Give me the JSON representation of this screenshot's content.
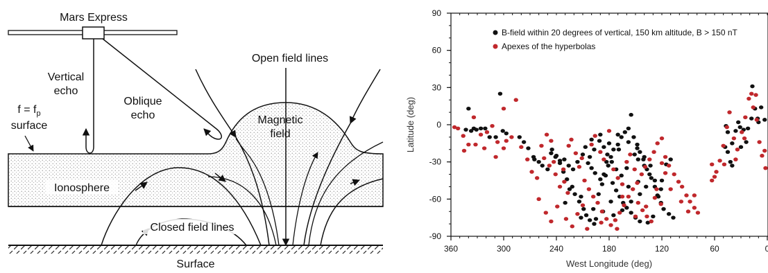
{
  "diagram": {
    "spacecraft_label": "Mars Express",
    "vertical_echo_line1": "Vertical",
    "vertical_echo_line2": "echo",
    "oblique_echo_line1": "Oblique",
    "oblique_echo_line2": "echo",
    "surface_label_line1": "f = f",
    "surface_label_sub": "p",
    "surface_label_line2": "surface",
    "open_field_lines": "Open field lines",
    "magnetic_field_line1": "Magnetic",
    "magnetic_field_line2": "field",
    "ionosphere": "Ionosphere",
    "closed_field_lines": "Closed field lines",
    "ground_label": "Surface"
  },
  "chart_data": {
    "type": "scatter",
    "xlabel": "West Longitude (deg)",
    "ylabel": "Latitude (deg)",
    "xlim": [
      360,
      0
    ],
    "ylim": [
      -90,
      90
    ],
    "x_ticks": [
      "360",
      "300",
      "240",
      "180",
      "120",
      "60",
      "0"
    ],
    "y_ticks": [
      "90",
      "60",
      "30",
      "0",
      "-30",
      "-60",
      "-90"
    ],
    "legend_position": "top-right",
    "series": [
      {
        "name": "B-field within 20 degrees of vertical, 150 km altitude, B > 150 nT",
        "color": "#111111",
        "points": [
          [
            340,
            13
          ],
          [
            343,
            -4
          ],
          [
            337,
            -5
          ],
          [
            334,
            -3
          ],
          [
            331,
            -4
          ],
          [
            326,
            -3
          ],
          [
            321,
            -3
          ],
          [
            316,
            -10
          ],
          [
            309,
            -10
          ],
          [
            304,
            25
          ],
          [
            301,
            -5
          ],
          [
            297,
            -7
          ],
          [
            282,
            -10
          ],
          [
            277,
            -14
          ],
          [
            272,
            -19
          ],
          [
            266,
            -26
          ],
          [
            265,
            -28
          ],
          [
            260,
            -30
          ],
          [
            256,
            -33
          ],
          [
            250,
            -36
          ],
          [
            245,
            -20
          ],
          [
            240,
            -25
          ],
          [
            236,
            -29
          ],
          [
            232,
            -38
          ],
          [
            228,
            -44
          ],
          [
            222,
            -50
          ],
          [
            219,
            -56
          ],
          [
            214,
            -62
          ],
          [
            209,
            -68
          ],
          [
            206,
            -73
          ],
          [
            202,
            -77
          ],
          [
            197,
            -80
          ],
          [
            192,
            -56
          ],
          [
            188,
            -48
          ],
          [
            184,
            -41
          ],
          [
            181,
            -33
          ],
          [
            178,
            -26
          ],
          [
            175,
            -20
          ],
          [
            170,
            -16
          ],
          [
            166,
            -10
          ],
          [
            162,
            -6
          ],
          [
            158,
            -3
          ],
          [
            155,
            8
          ],
          [
            152,
            -10
          ],
          [
            148,
            -16
          ],
          [
            145,
            -22
          ],
          [
            141,
            -28
          ],
          [
            137,
            -36
          ],
          [
            132,
            -43
          ],
          [
            128,
            -50
          ],
          [
            125,
            -57
          ],
          [
            121,
            -63
          ],
          [
            118,
            -68
          ],
          [
            112,
            -72
          ],
          [
            107,
            -75
          ],
          [
            204,
            -31
          ],
          [
            200,
            -35
          ],
          [
            196,
            -39
          ],
          [
            190,
            -44
          ],
          [
            186,
            -40
          ],
          [
            176,
            -47
          ],
          [
            172,
            -53
          ],
          [
            168,
            -58
          ],
          [
            164,
            -63
          ],
          [
            160,
            -67
          ],
          [
            155,
            -71
          ],
          [
            150,
            -75
          ],
          [
            145,
            -78
          ],
          [
            136,
            -79
          ],
          [
            130,
            -74
          ],
          [
            124,
            -58
          ],
          [
            121,
            -52
          ],
          [
            128,
            -45
          ],
          [
            134,
            -40
          ],
          [
            140,
            -33
          ],
          [
            147,
            -28
          ],
          [
            151,
            -24
          ],
          [
            160,
            -35
          ],
          [
            166,
            -41
          ],
          [
            172,
            -36
          ],
          [
            177,
            -30
          ],
          [
            182,
            -24
          ],
          [
            186,
            -18
          ],
          [
            191,
            -13
          ],
          [
            197,
            -20
          ],
          [
            202,
            -26
          ],
          [
            210,
            -24
          ],
          [
            216,
            -30
          ],
          [
            221,
            -36
          ],
          [
            226,
            -33
          ],
          [
            231,
            -28
          ],
          [
            236,
            -31
          ],
          [
            241,
            -26
          ],
          [
            246,
            -23
          ],
          [
            225,
            -52
          ],
          [
            212,
            -58
          ],
          [
            198,
            -68
          ],
          [
            187,
            -70
          ],
          [
            175,
            -73
          ],
          [
            165,
            -69
          ],
          [
            155,
            -62
          ],
          [
            145,
            -56
          ],
          [
            138,
            -50
          ],
          [
            133,
            -33
          ],
          [
            140,
            -26
          ],
          [
            148,
            -19
          ],
          [
            158,
            -14
          ],
          [
            170,
            -8
          ],
          [
            180,
            -15
          ],
          [
            190,
            -8
          ],
          [
            200,
            -12
          ],
          [
            207,
            -18
          ],
          [
            45,
            -22
          ],
          [
            42,
            -30
          ],
          [
            48,
            -18
          ],
          [
            40,
            -15
          ],
          [
            36,
            -5
          ],
          [
            33,
            2
          ],
          [
            27,
            -4
          ],
          [
            22,
            -3
          ],
          [
            18,
            5
          ],
          [
            14,
            13
          ],
          [
            10,
            2
          ],
          [
            7,
            14
          ],
          [
            31,
            -2
          ],
          [
            45,
            -6
          ],
          [
            47,
            -1
          ],
          [
            24,
            -14
          ],
          [
            30,
            -18
          ],
          [
            40,
            -33
          ],
          [
            17,
            31
          ],
          [
            11,
            5
          ],
          [
            3,
            4
          ],
          [
            120,
            -45
          ],
          [
            115,
            -32
          ],
          [
            110,
            -28
          ],
          [
            195,
            -76
          ],
          [
            212,
            -75
          ],
          [
            230,
            -63
          ],
          [
            178,
            -62
          ],
          [
            158,
            -50
          ],
          [
            147,
            -46
          ],
          [
            169,
            -20
          ],
          [
            183,
            -30
          ]
        ]
      },
      {
        "name": "Apexes of the hyperbolas",
        "color": "#c0282c",
        "points": [
          [
            356,
            -2
          ],
          [
            346,
            -9
          ],
          [
            340,
            -16
          ],
          [
            334,
            6
          ],
          [
            326,
            -8
          ],
          [
            319,
            -6
          ],
          [
            313,
            -1
          ],
          [
            307,
            -14
          ],
          [
            300,
            13
          ],
          [
            297,
            -13
          ],
          [
            291,
            -10
          ],
          [
            286,
            20
          ],
          [
            280,
            -18
          ],
          [
            273,
            -28
          ],
          [
            268,
            -38
          ],
          [
            262,
            -43
          ],
          [
            257,
            -17
          ],
          [
            251,
            -8
          ],
          [
            246,
            -13
          ],
          [
            241,
            -40
          ],
          [
            236,
            -50
          ],
          [
            231,
            -46
          ],
          [
            227,
            -55
          ],
          [
            223,
            -12
          ],
          [
            218,
            -23
          ],
          [
            214,
            -34
          ],
          [
            208,
            -45
          ],
          [
            203,
            -52
          ],
          [
            198,
            -58
          ],
          [
            193,
            -63
          ],
          [
            188,
            -70
          ],
          [
            183,
            -76
          ],
          [
            178,
            -81
          ],
          [
            173,
            -77
          ],
          [
            168,
            -71
          ],
          [
            163,
            -65
          ],
          [
            158,
            -58
          ],
          [
            153,
            -52
          ],
          [
            148,
            -47
          ],
          [
            143,
            -40
          ],
          [
            139,
            -34
          ],
          [
            134,
            -28
          ],
          [
            129,
            -22
          ],
          [
            125,
            -15
          ],
          [
            120,
            -11
          ],
          [
            116,
            -26
          ],
          [
            112,
            -33
          ],
          [
            106,
            -40
          ],
          [
            101,
            -46
          ],
          [
            97,
            -50
          ],
          [
            92,
            -57
          ],
          [
            88,
            -62
          ],
          [
            83,
            -67
          ],
          [
            79,
            -71
          ],
          [
            200,
            -16
          ],
          [
            196,
            -9
          ],
          [
            190,
            -22
          ],
          [
            186,
            -28
          ],
          [
            180,
            -5
          ],
          [
            175,
            -36
          ],
          [
            170,
            -43
          ],
          [
            165,
            -48
          ],
          [
            160,
            -30
          ],
          [
            156,
            -24
          ],
          [
            151,
            -36
          ],
          [
            147,
            -63
          ],
          [
            142,
            -69
          ],
          [
            137,
            -74
          ],
          [
            132,
            -78
          ],
          [
            126,
            -52
          ],
          [
            121,
            -64
          ],
          [
            260,
            -60
          ],
          [
            252,
            -71
          ],
          [
            246,
            -78
          ],
          [
            239,
            -66
          ],
          [
            229,
            -76
          ],
          [
            222,
            -82
          ],
          [
            216,
            -72
          ],
          [
            210,
            -65
          ],
          [
            205,
            -84
          ],
          [
            300,
            -19
          ],
          [
            309,
            -26
          ],
          [
            322,
            -19
          ],
          [
            332,
            -16
          ],
          [
            345,
            -21
          ],
          [
            352,
            -3
          ],
          [
            243,
            -30
          ],
          [
            248,
            -33
          ],
          [
            254,
            -27
          ],
          [
            211,
            -27
          ],
          [
            226,
            -17
          ],
          [
            232,
            -36
          ],
          [
            120,
            -31
          ],
          [
            116,
            -39
          ],
          [
            63,
            -45
          ],
          [
            58,
            -38
          ],
          [
            54,
            -29
          ],
          [
            50,
            -17
          ],
          [
            46,
            -2
          ],
          [
            43,
            10
          ],
          [
            38,
            -11
          ],
          [
            34,
            -20
          ],
          [
            29,
            -6
          ],
          [
            25,
            6
          ],
          [
            21,
            21
          ],
          [
            16,
            14
          ],
          [
            13,
            24
          ],
          [
            9,
            -14
          ],
          [
            6,
            -25
          ],
          [
            3,
            -21
          ],
          [
            2,
            -35
          ],
          [
            63,
            -32
          ],
          [
            60,
            -42
          ],
          [
            49,
            -32
          ],
          [
            36,
            -28
          ],
          [
            26,
            -11
          ],
          [
            18,
            25
          ],
          [
            12,
            4
          ],
          [
            165,
            -58
          ],
          [
            171,
            -84
          ],
          [
            189,
            -79
          ],
          [
            150,
            -74
          ],
          [
            138,
            -66
          ],
          [
            128,
            -59
          ],
          [
            110,
            -52
          ],
          [
            98,
            -62
          ],
          [
            83,
            -57
          ],
          [
            90,
            -70
          ]
        ]
      }
    ]
  }
}
